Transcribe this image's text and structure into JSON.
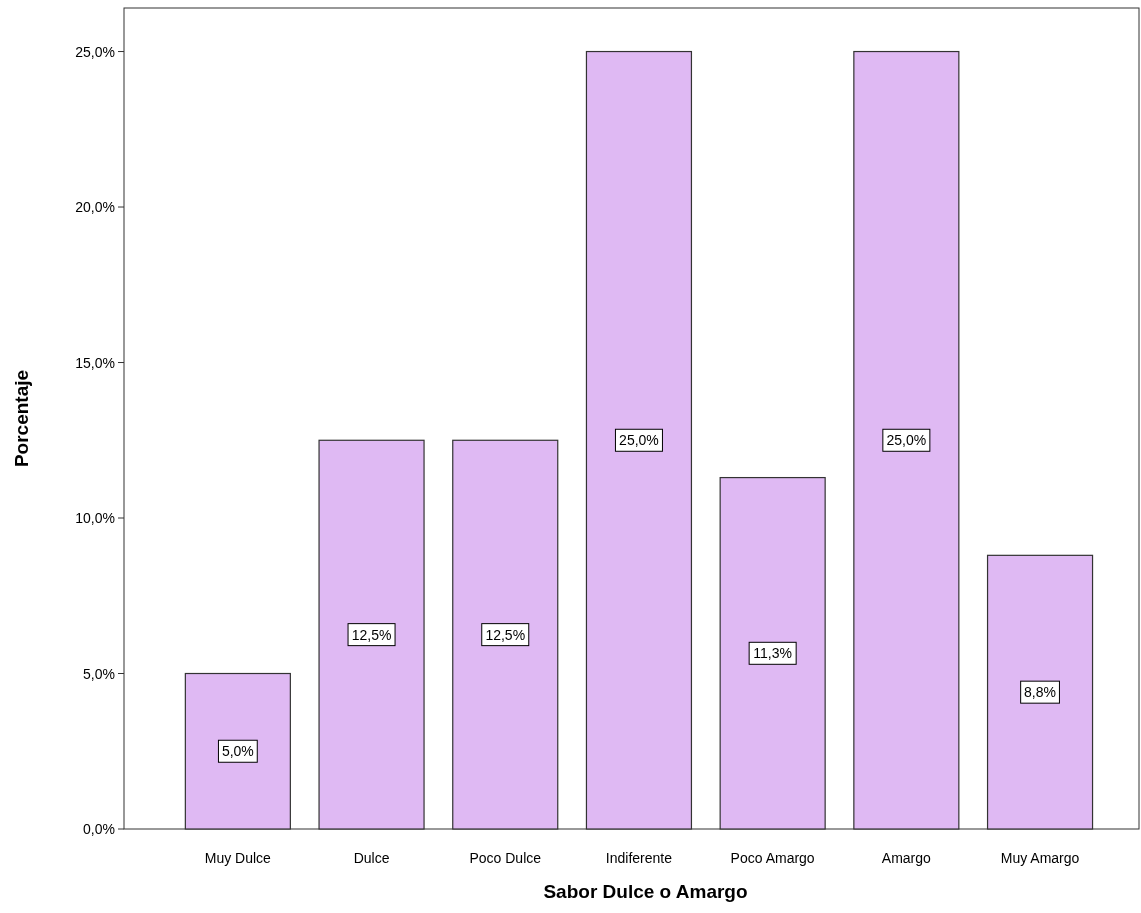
{
  "chart_data": {
    "type": "bar",
    "xlabel": "Sabor Dulce o Amargo",
    "ylabel": "Porcentaje",
    "categories": [
      "Muy Dulce",
      "Dulce",
      "Poco Dulce",
      "Indiferente",
      "Poco Amargo",
      "Amargo",
      "Muy Amargo"
    ],
    "values": [
      5.0,
      12.5,
      12.5,
      25.0,
      11.3,
      25.0,
      8.8
    ],
    "value_labels": [
      "5,0%",
      "12,5%",
      "12,5%",
      "25,0%",
      "11,3%",
      "25,0%",
      "8,8%"
    ],
    "color": "#dfb9f3",
    "ylim": [
      0,
      26.4
    ],
    "yticks": [
      {
        "value": 0,
        "label": "0,0%"
      },
      {
        "value": 5,
        "label": "5,0%"
      },
      {
        "value": 10,
        "label": "10,0%"
      },
      {
        "value": 15,
        "label": "15,0%"
      },
      {
        "value": 20,
        "label": "20,0%"
      },
      {
        "value": 25,
        "label": "25,0%"
      }
    ],
    "grid": false
  }
}
